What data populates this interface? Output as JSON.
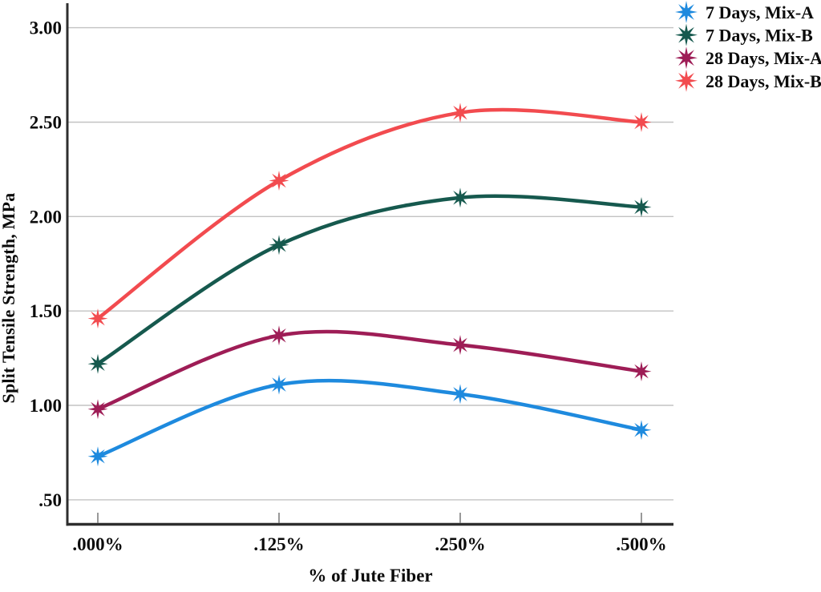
{
  "figure": {
    "background": "#ffffff"
  },
  "chart_data": {
    "type": "line",
    "title": "",
    "xlabel": "% of Jute Fiber",
    "ylabel": "Split Tensile Strength, MPa",
    "categories": [
      ".000%",
      ".125%",
      ".250%",
      ".500%"
    ],
    "y_ticks": [
      3.0,
      2.5,
      2.0,
      1.5,
      1.0,
      0.5
    ],
    "y_tick_labels": [
      "3.00",
      "2.50",
      "2.00",
      "1.50",
      "1.00",
      ".50"
    ],
    "ylim": [
      0.37,
      3.13
    ],
    "grid": true,
    "curve": "smooth",
    "marker": "8-point-star",
    "legend_position": "top-right",
    "series": [
      {
        "name": "7 Days, Mix-A",
        "color": "#1E8ADE",
        "values": [
          0.73,
          1.11,
          1.06,
          0.87
        ]
      },
      {
        "name": "7 Days, Mix-B",
        "color": "#16594E",
        "values": [
          1.22,
          1.85,
          2.1,
          2.05
        ]
      },
      {
        "name": "28 Days, Mix-A",
        "color": "#9E1D56",
        "values": [
          0.98,
          1.37,
          1.32,
          1.18
        ]
      },
      {
        "name": "28 Days, Mix-B",
        "color": "#F24B4F",
        "values": [
          1.46,
          2.19,
          2.55,
          2.5
        ]
      }
    ]
  },
  "styles": {
    "grid_color": "#C3C3C3",
    "axis_color": "#2E2E2E",
    "tick_color": "#777777",
    "text_color": "#0B0B0B"
  }
}
